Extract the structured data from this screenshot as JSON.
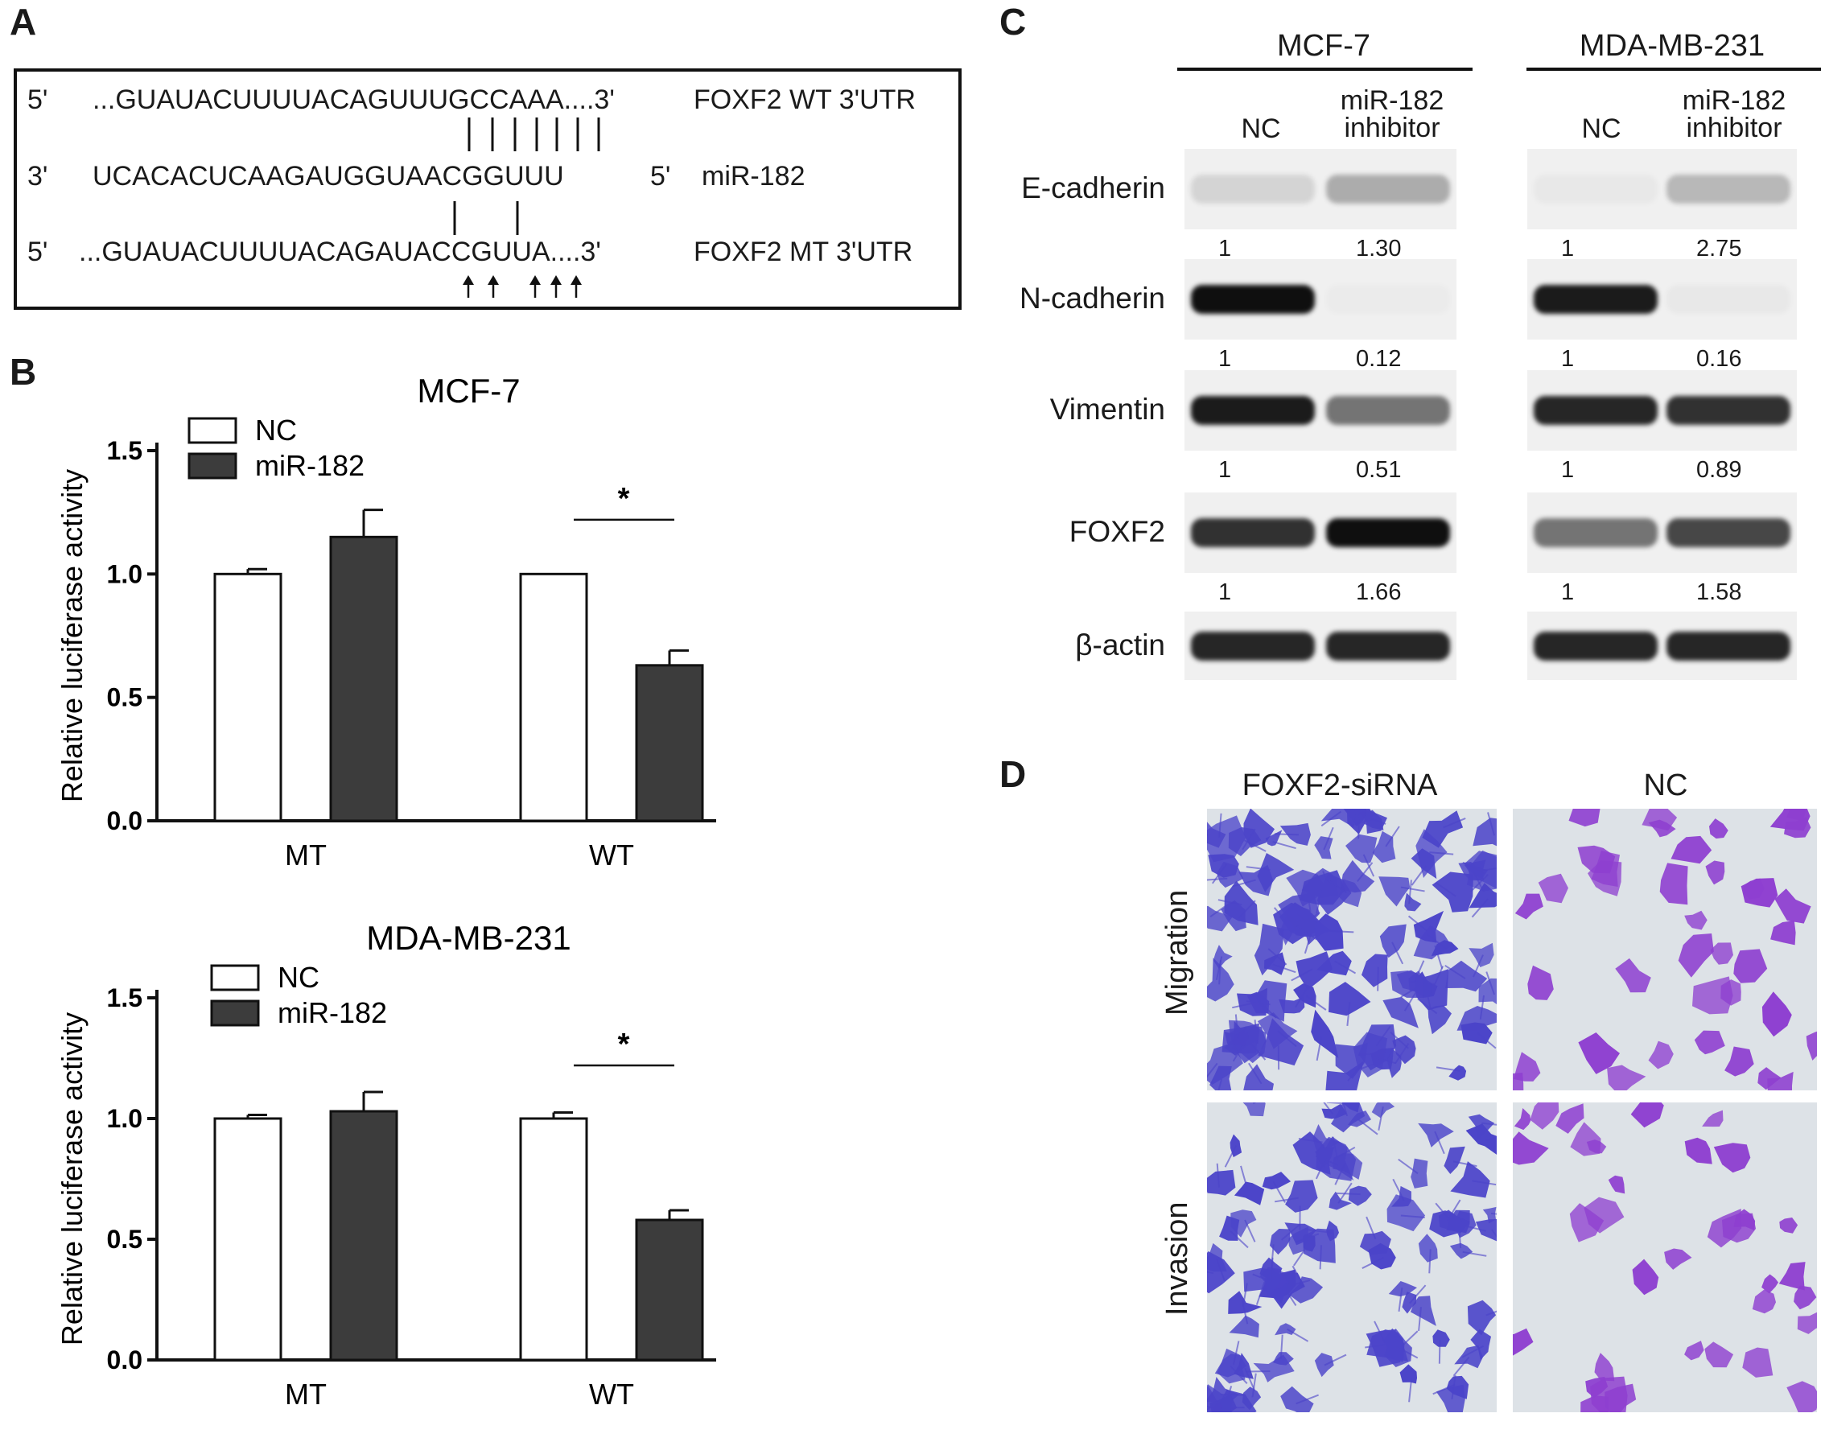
{
  "panels": {
    "a": "A",
    "b": "B",
    "c": "C",
    "d": "D"
  },
  "panel_a": {
    "rows": [
      {
        "prime_left": "5'",
        "seq": "...GUAUACUUUUACAGUUUGCCAAA....3'",
        "label": "FOXF2 WT 3'UTR"
      },
      {
        "prime_left": "3'",
        "seq": "UCACACUCAAGAUGGUAACGGUUU",
        "prime_right": "5'",
        "label": "miR-182"
      },
      {
        "prime_left": "5'",
        "seq": "...GUAUACUUUUACAGAUACCGUUA....3'",
        "label": "FOXF2 MT 3'UTR"
      }
    ]
  },
  "chart_data": [
    {
      "type": "bar",
      "title": "MCF-7",
      "ylabel": "Relative luciferase activity",
      "xlabel": "",
      "categories": [
        "MT",
        "WT"
      ],
      "ylim": [
        0,
        1.5
      ],
      "yticks": [
        "0.0",
        "0.5",
        "1.0",
        "1.5"
      ],
      "series": [
        {
          "name": "NC",
          "values": [
            1.0,
            1.0
          ],
          "errors": [
            0.02,
            0.0
          ],
          "color": "#ffffff"
        },
        {
          "name": "miR-182",
          "values": [
            1.15,
            0.63
          ],
          "errors": [
            0.11,
            0.06
          ],
          "color": "#3c3c3c"
        }
      ],
      "significance": {
        "category": "WT",
        "label": "*"
      },
      "legend": "top-left"
    },
    {
      "type": "bar",
      "title": "MDA-MB-231",
      "ylabel": "Relative luciferase activity",
      "xlabel": "",
      "categories": [
        "MT",
        "WT"
      ],
      "ylim": [
        0,
        1.5
      ],
      "yticks": [
        "0.0",
        "0.5",
        "1.0",
        "1.5"
      ],
      "series": [
        {
          "name": "NC",
          "values": [
            1.0,
            1.0
          ],
          "errors": [
            0.015,
            0.025
          ],
          "color": "#ffffff"
        },
        {
          "name": "miR-182",
          "values": [
            1.03,
            0.58
          ],
          "errors": [
            0.08,
            0.04
          ],
          "color": "#3c3c3c"
        }
      ],
      "significance": {
        "category": "WT",
        "label": "*"
      },
      "legend": "top-left"
    }
  ],
  "panel_c": {
    "cell_lines": [
      "MCF-7",
      "MDA-MB-231"
    ],
    "conditions": [
      "NC",
      "miR-182\ninhibitor"
    ],
    "proteins": [
      {
        "name": "E-cadherin",
        "quant": [
          [
            "1",
            "1.30"
          ],
          [
            "1",
            "2.75"
          ]
        ],
        "intensity": [
          [
            0.12,
            0.3
          ],
          [
            0.03,
            0.25
          ]
        ]
      },
      {
        "name": "N-cadherin",
        "quant": [
          [
            "1",
            "0.12"
          ],
          [
            "1",
            "0.16"
          ]
        ],
        "intensity": [
          [
            1.0,
            0.02
          ],
          [
            0.95,
            0.03
          ]
        ]
      },
      {
        "name": "Vimentin",
        "quant": [
          [
            "1",
            "0.51"
          ],
          [
            "1",
            "0.89"
          ]
        ],
        "intensity": [
          [
            0.95,
            0.55
          ],
          [
            0.9,
            0.85
          ]
        ]
      },
      {
        "name": "FOXF2",
        "quant": [
          [
            "1",
            "1.66"
          ],
          [
            "1",
            "1.58"
          ]
        ],
        "intensity": [
          [
            0.85,
            1.0
          ],
          [
            0.55,
            0.75
          ]
        ]
      },
      {
        "name": "β-actin",
        "quant": [],
        "intensity": [
          [
            0.9,
            0.9
          ],
          [
            0.9,
            0.9
          ]
        ]
      }
    ]
  },
  "panel_d": {
    "columns": [
      "FOXF2-siRNA",
      "NC"
    ],
    "rows": [
      "Migration",
      "Invasion"
    ]
  }
}
